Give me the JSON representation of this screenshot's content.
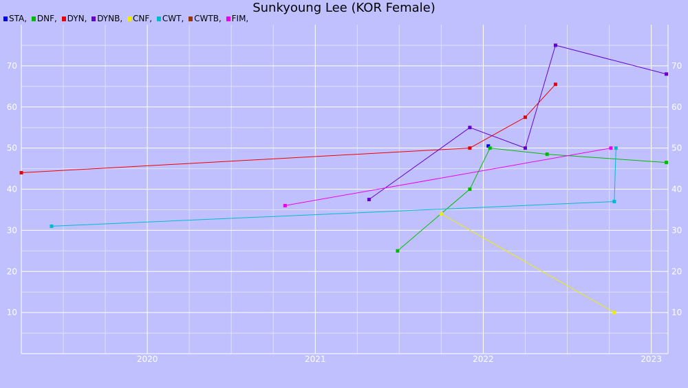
{
  "chart_data": {
    "type": "line",
    "title": "Sunkyoung Lee (KOR Female)",
    "xlabel": "",
    "ylabel": "",
    "xlim": [
      2019.25,
      2023.1
    ],
    "ylim": [
      0,
      80
    ],
    "x_ticks": [
      "2020",
      "2021",
      "2022",
      "2023"
    ],
    "x_tick_values": [
      2020,
      2021,
      2022,
      2023
    ],
    "y_ticks": [
      "10",
      "20",
      "30",
      "40",
      "50",
      "60",
      "70"
    ],
    "y_tick_values": [
      10,
      20,
      30,
      40,
      50,
      60,
      70
    ],
    "grid": true,
    "legend_position": "top-left",
    "series": [
      {
        "name": "STA",
        "color": "#0000ee",
        "points": [
          [
            2022.03,
            50.5
          ]
        ]
      },
      {
        "name": "DNF",
        "color": "#00bb00",
        "points": [
          [
            2021.49,
            25
          ],
          [
            2021.92,
            40
          ],
          [
            2022.04,
            50
          ],
          [
            2022.38,
            48.5
          ],
          [
            2023.09,
            46.5
          ]
        ]
      },
      {
        "name": "DYN",
        "color": "#ee0000",
        "points": [
          [
            2019.25,
            44
          ],
          [
            2021.92,
            50
          ],
          [
            2022.25,
            57.5
          ],
          [
            2022.43,
            65.5
          ]
        ]
      },
      {
        "name": "DYNB",
        "color": "#6600cc",
        "points": [
          [
            2021.32,
            37.5
          ],
          [
            2021.92,
            55
          ],
          [
            2022.25,
            50
          ],
          [
            2022.43,
            75
          ],
          [
            2023.09,
            68
          ]
        ]
      },
      {
        "name": "CNF",
        "color": "#eeee00",
        "points": [
          [
            2021.75,
            34
          ],
          [
            2022.78,
            10
          ]
        ]
      },
      {
        "name": "CWT",
        "color": "#00bbcc",
        "points": [
          [
            2019.43,
            31
          ],
          [
            2022.78,
            37
          ],
          [
            2022.79,
            50
          ]
        ]
      },
      {
        "name": "CWTB",
        "color": "#993300",
        "points": []
      },
      {
        "name": "FIM",
        "color": "#ee00ee",
        "points": [
          [
            2020.82,
            36
          ],
          [
            2022.76,
            50
          ]
        ]
      }
    ]
  }
}
